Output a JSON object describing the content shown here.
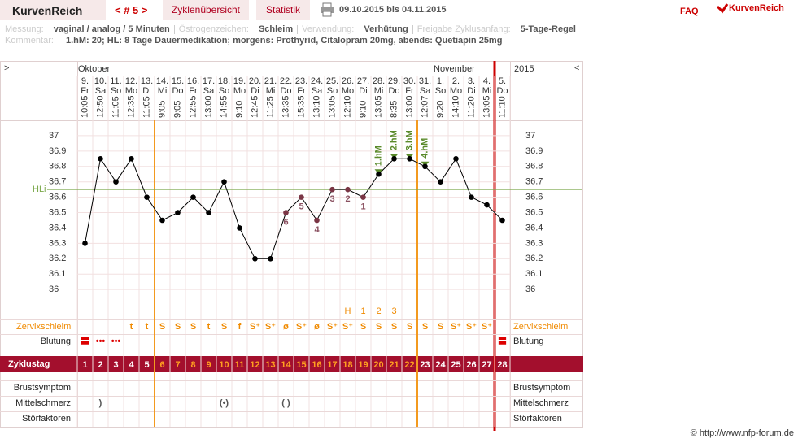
{
  "header": {
    "logo": "KurvenReich",
    "cycle_nav": "< # 5 >",
    "tabs": [
      "Zyklenübersicht",
      "Statistik"
    ],
    "date_range": "09.10.2015 bis 04.11.2015",
    "faq": "FAQ",
    "brand": "KurvenReich"
  },
  "info": {
    "fields": [
      {
        "label": "Messung:",
        "value": "vaginal / analog / 5 Minuten"
      },
      {
        "label": "Östrogenzeichen:",
        "value": "Schleim"
      },
      {
        "label": "Verwendung:",
        "value": "Verhütung"
      },
      {
        "label": "Freigabe Zyklusanfang:",
        "value": "5-Tage-Regel"
      }
    ],
    "comment_label": "Kommentar:",
    "comment": "1.hM: 20; HL: 8 Tage Dauermedikation; morgens: Prothyrid, Citalopram 20mg, abends: Quetiapin 25mg"
  },
  "chart_data": {
    "type": "line",
    "nav_prev": ">",
    "nav_next": "<",
    "year": "2015",
    "month_labels": [
      "Oktober",
      null,
      null,
      null,
      null,
      null,
      null,
      null,
      null,
      null,
      null,
      null,
      null,
      null,
      null,
      null,
      null,
      null,
      null,
      null,
      null,
      null,
      null,
      "November",
      null,
      null,
      null,
      null
    ],
    "day_numbers": [
      "9.",
      "10.",
      "11.",
      "12.",
      "13.",
      "14.",
      "15.",
      "16.",
      "17.",
      "18.",
      "19.",
      "20.",
      "21.",
      "22.",
      "23.",
      "24.",
      "25.",
      "26.",
      "27.",
      "28.",
      "29.",
      "30.",
      "31.",
      "1.",
      "2.",
      "3.",
      "4.",
      "5."
    ],
    "weekdays": [
      "Fr",
      "Sa",
      "So",
      "Mo",
      "Di",
      "Mi",
      "Do",
      "Fr",
      "Sa",
      "So",
      "Mo",
      "Di",
      "Mi",
      "Do",
      "Fr",
      "Sa",
      "So",
      "Mo",
      "Di",
      "Mi",
      "Do",
      "Fr",
      "Sa",
      "So",
      "Mo",
      "Di",
      "Mi",
      "Do"
    ],
    "times": [
      "10:05",
      "12:50",
      "11:05",
      "12:35",
      "11:05",
      "9:05",
      "9:05",
      "12:55",
      "13:00",
      "14:55",
      "9:10",
      "12:45",
      "11:25",
      "13:35",
      "15:35",
      "13:10",
      "13:05",
      "12:10",
      "9:10",
      "13:05",
      "8:35",
      "13:00",
      "12:07",
      "9:20",
      "14:10",
      "11:20",
      "13:05",
      "11:10"
    ],
    "category_label": "Zyklustag",
    "categories": [
      1,
      2,
      3,
      4,
      5,
      6,
      7,
      8,
      9,
      10,
      11,
      12,
      13,
      14,
      15,
      16,
      17,
      18,
      19,
      20,
      21,
      22,
      23,
      24,
      25,
      26,
      27,
      28
    ],
    "values": [
      36.3,
      36.85,
      36.7,
      36.85,
      36.6,
      36.45,
      36.5,
      36.6,
      36.5,
      36.7,
      36.4,
      36.2,
      36.2,
      36.5,
      36.6,
      36.45,
      36.65,
      36.65,
      36.6,
      36.75,
      36.85,
      36.85,
      36.8,
      36.7,
      36.85,
      36.6,
      36.55,
      36.45
    ],
    "color": "#000000",
    "low_labels": [
      null,
      null,
      null,
      null,
      null,
      null,
      null,
      null,
      null,
      null,
      null,
      null,
      null,
      "6",
      "5",
      "4",
      "3",
      "2",
      "1",
      null,
      null,
      null,
      null,
      null,
      null,
      null,
      null,
      null
    ],
    "high_labels": [
      null,
      null,
      null,
      null,
      null,
      null,
      null,
      null,
      null,
      null,
      null,
      null,
      null,
      null,
      null,
      null,
      null,
      null,
      null,
      "1.hM",
      "2.hM",
      "3.hM",
      "4.hM",
      null,
      null,
      null,
      null,
      null
    ],
    "hline": {
      "label": "HLi",
      "value": 36.65
    },
    "fertile_window": [
      6,
      22
    ],
    "ylim": [
      35.8,
      37.1
    ],
    "yticks": [
      36,
      36.1,
      36.2,
      36.3,
      36.4,
      36.5,
      36.6,
      36.7,
      36.8,
      36.9,
      37
    ],
    "grid": true,
    "peak_labels": [
      null,
      null,
      null,
      null,
      null,
      null,
      null,
      null,
      null,
      null,
      null,
      null,
      null,
      null,
      null,
      null,
      null,
      "H",
      "1",
      "2",
      "3",
      null,
      null,
      null,
      null,
      null,
      null,
      null
    ],
    "rows": [
      {
        "label": "Zervixschleim",
        "values": [
          null,
          null,
          null,
          "t",
          "t",
          "S",
          "S",
          "S",
          "t",
          "S",
          "f",
          "S⁺",
          "S⁺",
          "ø",
          "S⁺",
          "ø",
          "S⁺",
          "S⁺",
          "S",
          "S",
          "S",
          "S",
          "S",
          "S",
          "S⁺",
          "S⁺",
          "S⁺",
          null
        ]
      },
      {
        "label": "Blutung",
        "values": [
          "〓",
          "•••",
          "•••",
          null,
          null,
          null,
          null,
          null,
          null,
          null,
          null,
          null,
          null,
          null,
          null,
          null,
          null,
          null,
          null,
          null,
          null,
          null,
          null,
          null,
          null,
          null,
          null,
          "〓"
        ]
      },
      {
        "label": "Brustsymptom",
        "values": [
          null,
          null,
          null,
          null,
          null,
          null,
          null,
          null,
          null,
          null,
          null,
          null,
          null,
          null,
          null,
          null,
          null,
          null,
          null,
          null,
          null,
          null,
          null,
          null,
          null,
          null,
          null,
          null
        ]
      },
      {
        "label": "Mittelschmerz",
        "values": [
          null,
          ")",
          null,
          null,
          null,
          null,
          null,
          null,
          null,
          "(•)",
          null,
          null,
          null,
          "( )",
          null,
          null,
          null,
          null,
          null,
          null,
          null,
          null,
          null,
          null,
          null,
          null,
          null,
          null
        ]
      },
      {
        "label": "Störfaktoren",
        "values": [
          null,
          null,
          null,
          null,
          null,
          null,
          null,
          null,
          null,
          null,
          null,
          null,
          null,
          null,
          null,
          null,
          null,
          null,
          null,
          null,
          null,
          null,
          null,
          null,
          null,
          null,
          null,
          null
        ]
      }
    ]
  },
  "footer": "© http://www.nfp-forum.de"
}
